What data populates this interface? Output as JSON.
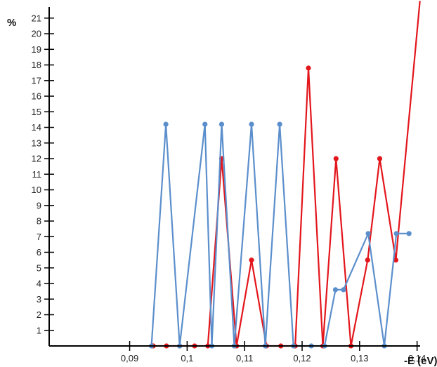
{
  "chart_data": {
    "type": "line",
    "xlabel": "-E (eV)",
    "ylabel": "%",
    "xlim": [
      0.076,
      0.142
    ],
    "ylim": [
      0,
      21.8
    ],
    "x_ticks": [
      0.09,
      0.1,
      0.11,
      0.12,
      0.13,
      0.14
    ],
    "x_tick_labels": [
      "0,09",
      "0,1",
      "0,11",
      "0,12",
      "0,13",
      "0,14"
    ],
    "y_ticks": [
      1,
      2,
      3,
      4,
      5,
      6,
      7,
      8,
      9,
      10,
      11,
      12,
      13,
      14,
      15,
      16,
      17,
      18,
      19,
      20,
      21
    ],
    "y_tick_labels": [
      "1",
      "2",
      "3",
      "4",
      "5",
      "6",
      "7",
      "8",
      "9",
      "10",
      "11",
      "12",
      "13",
      "14",
      "15",
      "16",
      "17",
      "18",
      "19",
      "20",
      "21"
    ],
    "grid": false,
    "legend": "none",
    "series": [
      {
        "color": "#e3161c",
        "points": [
          [
            0.0941,
            0
          ],
          [
            0.0964,
            0
          ],
          [
            0.0987,
            0
          ],
          [
            0.1013,
            0
          ],
          [
            0.1036,
            0
          ],
          [
            0.106,
            12
          ],
          [
            0.1086,
            0
          ],
          [
            0.1112,
            5.5
          ],
          [
            0.1138,
            0
          ],
          [
            0.1163,
            0
          ],
          [
            0.1188,
            0
          ],
          [
            0.1211,
            17.8
          ],
          [
            0.1236,
            0
          ],
          [
            0.1259,
            12
          ],
          [
            0.1285,
            0
          ],
          [
            0.1314,
            5.5
          ],
          [
            0.1335,
            12
          ],
          [
            0.1363,
            5.5
          ],
          [
            0.1405,
            22.1
          ]
        ]
      },
      {
        "color": "#5b8fcc",
        "points": [
          [
            0.0938,
            0
          ],
          [
            0.0963,
            14.2
          ],
          [
            0.0987,
            0
          ],
          [
            0.1031,
            14.2
          ],
          [
            0.1043,
            0
          ],
          [
            0.106,
            14.2
          ],
          [
            0.1082,
            0
          ],
          [
            0.1112,
            14.2
          ],
          [
            0.1136,
            0
          ],
          [
            0.1161,
            14.2
          ],
          [
            0.1185,
            0
          ],
          [
            0.1216,
            0
          ],
          [
            0.1239,
            0
          ],
          [
            0.1258,
            3.6
          ],
          [
            0.1272,
            3.6
          ],
          [
            0.1315,
            7.2
          ],
          [
            0.1343,
            0
          ],
          [
            0.1364,
            7.2
          ],
          [
            0.1386,
            7.2
          ]
        ]
      }
    ]
  }
}
